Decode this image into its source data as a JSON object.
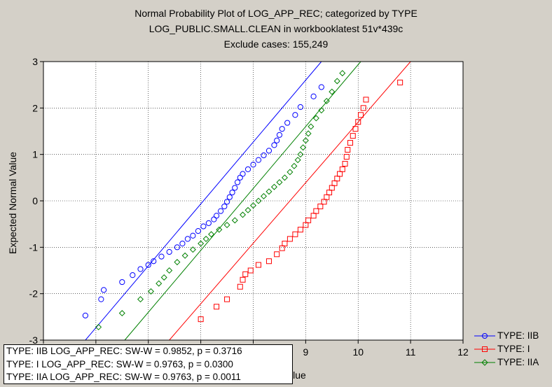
{
  "title": {
    "line1": "Normal Probability Plot of LOG_APP_REC; categorized by TYPE",
    "line2": "LOG_PUBLIC.SMALL.CLEAN in workbooklatest 51v*439c",
    "line3": "Exclude cases: 155,249"
  },
  "chart_data": {
    "type": "scatter",
    "title": "Normal Probability Plot of LOG_APP_REC; categorized by TYPE",
    "xlabel": "Value",
    "ylabel": "Expected Normal Value",
    "xlim": [
      4,
      12
    ],
    "ylim": [
      -3,
      3
    ],
    "x_ticks": [
      "9",
      "10",
      "11",
      "12"
    ],
    "y_ticks": [
      "3",
      "2",
      "1",
      "0",
      "-1",
      "-2",
      "-3"
    ],
    "grid": true,
    "legend_position": "bottom-right",
    "series": [
      {
        "name": "TYPE: IIB",
        "color": "#0000ff",
        "marker": "circle",
        "fit_line": [
          [
            4.8,
            -3.0
          ],
          [
            9.3,
            3.0
          ]
        ],
        "points": [
          [
            4.8,
            -2.47
          ],
          [
            5.1,
            -2.12
          ],
          [
            5.15,
            -1.92
          ],
          [
            5.5,
            -1.75
          ],
          [
            5.7,
            -1.6
          ],
          [
            5.85,
            -1.47
          ],
          [
            6.0,
            -1.38
          ],
          [
            6.1,
            -1.3
          ],
          [
            6.25,
            -1.2
          ],
          [
            6.4,
            -1.1
          ],
          [
            6.55,
            -1.0
          ],
          [
            6.65,
            -0.92
          ],
          [
            6.75,
            -0.82
          ],
          [
            6.85,
            -0.75
          ],
          [
            6.95,
            -0.65
          ],
          [
            7.05,
            -0.55
          ],
          [
            7.15,
            -0.48
          ],
          [
            7.25,
            -0.4
          ],
          [
            7.3,
            -0.32
          ],
          [
            7.38,
            -0.22
          ],
          [
            7.45,
            -0.12
          ],
          [
            7.5,
            -0.02
          ],
          [
            7.55,
            0.08
          ],
          [
            7.6,
            0.18
          ],
          [
            7.65,
            0.28
          ],
          [
            7.7,
            0.4
          ],
          [
            7.75,
            0.5
          ],
          [
            7.8,
            0.58
          ],
          [
            7.9,
            0.68
          ],
          [
            8.0,
            0.78
          ],
          [
            8.1,
            0.88
          ],
          [
            8.2,
            0.98
          ],
          [
            8.3,
            1.08
          ],
          [
            8.4,
            1.2
          ],
          [
            8.45,
            1.3
          ],
          [
            8.5,
            1.42
          ],
          [
            8.55,
            1.55
          ],
          [
            8.65,
            1.68
          ],
          [
            8.8,
            1.85
          ],
          [
            8.9,
            2.02
          ],
          [
            9.15,
            2.25
          ],
          [
            9.3,
            2.45
          ]
        ]
      },
      {
        "name": "TYPE: I",
        "color": "#ff0000",
        "marker": "square",
        "fit_line": [
          [
            6.4,
            -3.0
          ],
          [
            11.0,
            3.0
          ]
        ],
        "points": [
          [
            7.0,
            -2.55
          ],
          [
            7.3,
            -2.28
          ],
          [
            7.5,
            -2.12
          ],
          [
            7.75,
            -1.85
          ],
          [
            7.8,
            -1.7
          ],
          [
            7.85,
            -1.58
          ],
          [
            7.95,
            -1.5
          ],
          [
            8.1,
            -1.38
          ],
          [
            8.3,
            -1.3
          ],
          [
            8.45,
            -1.15
          ],
          [
            8.55,
            -1.02
          ],
          [
            8.6,
            -0.92
          ],
          [
            8.7,
            -0.82
          ],
          [
            8.8,
            -0.72
          ],
          [
            8.9,
            -0.62
          ],
          [
            9.0,
            -0.52
          ],
          [
            9.05,
            -0.42
          ],
          [
            9.15,
            -0.32
          ],
          [
            9.2,
            -0.22
          ],
          [
            9.28,
            -0.12
          ],
          [
            9.35,
            -0.02
          ],
          [
            9.4,
            0.08
          ],
          [
            9.45,
            0.18
          ],
          [
            9.5,
            0.28
          ],
          [
            9.55,
            0.38
          ],
          [
            9.6,
            0.48
          ],
          [
            9.65,
            0.58
          ],
          [
            9.7,
            0.68
          ],
          [
            9.75,
            0.8
          ],
          [
            9.78,
            0.95
          ],
          [
            9.8,
            1.1
          ],
          [
            9.85,
            1.25
          ],
          [
            9.9,
            1.4
          ],
          [
            9.95,
            1.55
          ],
          [
            10.0,
            1.7
          ],
          [
            10.05,
            1.85
          ],
          [
            10.1,
            2.0
          ],
          [
            10.15,
            2.18
          ],
          [
            10.8,
            2.55
          ]
        ]
      },
      {
        "name": "TYPE: IIA",
        "color": "#008000",
        "marker": "diamond",
        "fit_line": [
          [
            5.55,
            -3.0
          ],
          [
            10.05,
            3.0
          ]
        ],
        "points": [
          [
            5.05,
            -2.72
          ],
          [
            5.5,
            -2.42
          ],
          [
            5.85,
            -2.12
          ],
          [
            6.05,
            -1.95
          ],
          [
            6.2,
            -1.78
          ],
          [
            6.3,
            -1.65
          ],
          [
            6.4,
            -1.5
          ],
          [
            6.55,
            -1.32
          ],
          [
            6.7,
            -1.18
          ],
          [
            6.85,
            -1.05
          ],
          [
            7.0,
            -0.92
          ],
          [
            7.1,
            -0.82
          ],
          [
            7.2,
            -0.72
          ],
          [
            7.35,
            -0.62
          ],
          [
            7.5,
            -0.52
          ],
          [
            7.65,
            -0.42
          ],
          [
            7.8,
            -0.3
          ],
          [
            7.9,
            -0.2
          ],
          [
            8.0,
            -0.1
          ],
          [
            8.1,
            0.0
          ],
          [
            8.2,
            0.1
          ],
          [
            8.3,
            0.2
          ],
          [
            8.4,
            0.3
          ],
          [
            8.5,
            0.4
          ],
          [
            8.6,
            0.5
          ],
          [
            8.7,
            0.62
          ],
          [
            8.78,
            0.75
          ],
          [
            8.85,
            0.88
          ],
          [
            8.9,
            1.0
          ],
          [
            8.95,
            1.15
          ],
          [
            9.0,
            1.3
          ],
          [
            9.05,
            1.45
          ],
          [
            9.1,
            1.6
          ],
          [
            9.2,
            1.78
          ],
          [
            9.3,
            1.95
          ],
          [
            9.4,
            2.15
          ],
          [
            9.5,
            2.35
          ],
          [
            9.6,
            2.58
          ],
          [
            9.7,
            2.75
          ]
        ]
      }
    ]
  },
  "stats": {
    "lines": [
      "TYPE: IIB  LOG_APP_REC:  SW-W = 0.9852, p = 0.3716",
      "TYPE: I  LOG_APP_REC:  SW-W = 0.9763, p = 0.0300",
      "TYPE: IIA  LOG_APP_REC:  SW-W = 0.9763, p = 0.0011"
    ]
  },
  "legend": {
    "items": [
      {
        "label": "TYPE: IIB",
        "color": "#0000ff",
        "marker": "circle"
      },
      {
        "label": "TYPE: I",
        "color": "#ff0000",
        "marker": "square"
      },
      {
        "label": "TYPE: IIA",
        "color": "#008000",
        "marker": "diamond"
      }
    ]
  }
}
